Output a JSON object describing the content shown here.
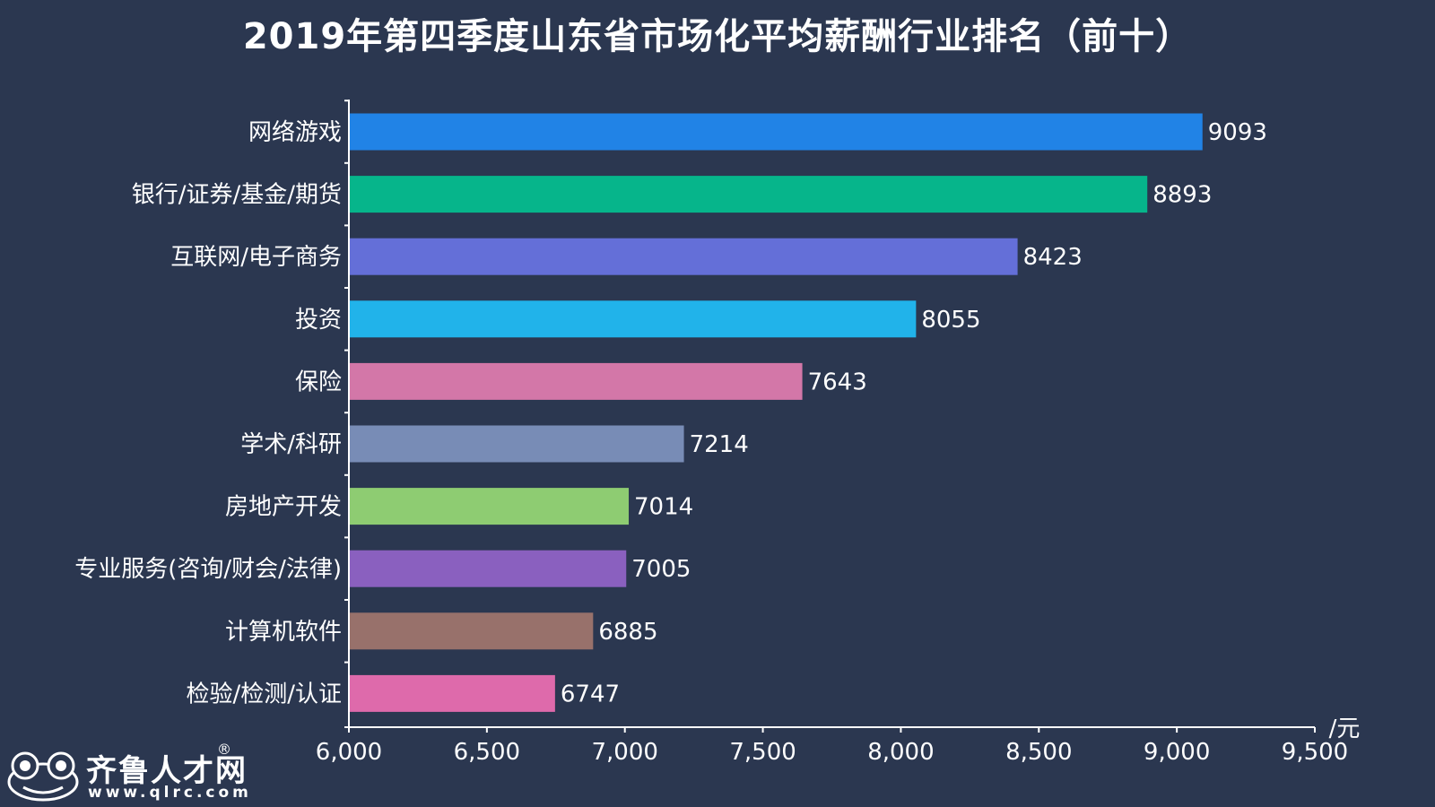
{
  "chart_data": {
    "type": "bar",
    "orientation": "horizontal",
    "title": "2019年第四季度山东省市场化平均薪酬行业排名（前十）",
    "unit_label": "/元",
    "xlim": [
      6000,
      9500
    ],
    "xticks": [
      "6,000",
      "6,500",
      "7,000",
      "7,500",
      "8,000",
      "8,500",
      "9,000",
      "9,500"
    ],
    "xtick_values": [
      6000,
      6500,
      7000,
      7500,
      8000,
      8500,
      9000,
      9500
    ],
    "grid": false,
    "categories": [
      "网络游戏",
      "银行/证券/基金/期货",
      "互联网/电子商务",
      "投资",
      "保险",
      "学术/科研",
      "房地产开发",
      "专业服务(咨询/财会/法律)",
      "计算机软件",
      "检验/检测/认证"
    ],
    "values": [
      9093,
      8893,
      8423,
      8055,
      7643,
      7214,
      7014,
      7005,
      6885,
      6747
    ],
    "colors": [
      "#2183e6",
      "#06b58b",
      "#646fd8",
      "#21b3ea",
      "#d377a8",
      "#788cb6",
      "#8ecc72",
      "#8a60bf",
      "#98716b",
      "#de6aab"
    ]
  },
  "logo": {
    "name": "齐鲁人才网",
    "registered": "®",
    "url": "www.qlrc.com"
  }
}
